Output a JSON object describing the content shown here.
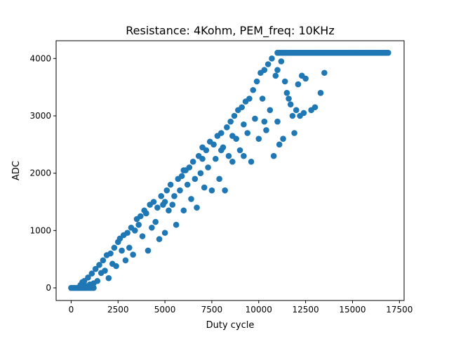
{
  "chart_data": {
    "type": "scatter",
    "title": "Resistance: 4Kohm, PEM_freq: 10KHz",
    "xlabel": "Duty cycle",
    "ylabel": "ADC",
    "xlim": [
      -800,
      17750
    ],
    "ylim": [
      -220,
      4310
    ],
    "grid": false,
    "legend": "none",
    "x_ticks": [
      {
        "value": 0,
        "label": "0"
      },
      {
        "value": 2500,
        "label": "2500"
      },
      {
        "value": 5000,
        "label": "5000"
      },
      {
        "value": 7500,
        "label": "7500"
      },
      {
        "value": 10000,
        "label": "10000"
      },
      {
        "value": 12500,
        "label": "12500"
      },
      {
        "value": 15000,
        "label": "15000"
      },
      {
        "value": 17500,
        "label": "17500"
      }
    ],
    "y_ticks": [
      {
        "value": 0,
        "label": "0"
      },
      {
        "value": 1000,
        "label": "1000"
      },
      {
        "value": 2000,
        "label": "2000"
      },
      {
        "value": 3000,
        "label": "3000"
      },
      {
        "value": 4000,
        "label": "4000"
      }
    ],
    "series": [
      {
        "color": "#1f77b4",
        "marker": "circle",
        "points": [
          [
            0,
            0
          ],
          [
            100,
            0
          ],
          [
            200,
            0
          ],
          [
            300,
            0
          ],
          [
            400,
            0
          ],
          [
            500,
            0
          ],
          [
            600,
            0
          ],
          [
            700,
            0
          ],
          [
            800,
            0
          ],
          [
            900,
            0
          ],
          [
            1000,
            0
          ],
          [
            1100,
            0
          ],
          [
            1200,
            0
          ],
          [
            500,
            50
          ],
          [
            600,
            100
          ],
          [
            700,
            120
          ],
          [
            800,
            30
          ],
          [
            900,
            180
          ],
          [
            1000,
            60
          ],
          [
            1100,
            250
          ],
          [
            1200,
            80
          ],
          [
            1300,
            330
          ],
          [
            1400,
            120
          ],
          [
            1500,
            400
          ],
          [
            1600,
            260
          ],
          [
            1700,
            480
          ],
          [
            1800,
            300
          ],
          [
            1900,
            570
          ],
          [
            2000,
            170
          ],
          [
            2100,
            600
          ],
          [
            2200,
            420
          ],
          [
            2300,
            700
          ],
          [
            2400,
            380
          ],
          [
            2500,
            800
          ],
          [
            2600,
            860
          ],
          [
            2700,
            650
          ],
          [
            2800,
            920
          ],
          [
            2900,
            480
          ],
          [
            3000,
            960
          ],
          [
            3100,
            700
          ],
          [
            3200,
            1050
          ],
          [
            3300,
            580
          ],
          [
            3400,
            1000
          ],
          [
            3500,
            1200
          ],
          [
            3600,
            1100
          ],
          [
            3700,
            1250
          ],
          [
            3800,
            900
          ],
          [
            3900,
            1350
          ],
          [
            4000,
            1300
          ],
          [
            4100,
            650
          ],
          [
            4200,
            1450
          ],
          [
            4300,
            1050
          ],
          [
            4400,
            1500
          ],
          [
            4500,
            1150
          ],
          [
            4600,
            1400
          ],
          [
            4700,
            850
          ],
          [
            4800,
            1600
          ],
          [
            4900,
            1450
          ],
          [
            5000,
            960
          ],
          [
            5100,
            1700
          ],
          [
            5200,
            1350
          ],
          [
            5300,
            1800
          ],
          [
            5400,
            1450
          ],
          [
            5500,
            1600
          ],
          [
            5600,
            1100
          ],
          [
            5700,
            1900
          ],
          [
            5800,
            1700
          ],
          [
            5900,
            1950
          ],
          [
            6000,
            1350
          ],
          [
            6100,
            2050
          ],
          [
            6200,
            1800
          ],
          [
            6300,
            2100
          ],
          [
            6400,
            1550
          ],
          [
            6500,
            2200
          ],
          [
            6600,
            1900
          ],
          [
            6700,
            1400
          ],
          [
            6800,
            2300
          ],
          [
            6900,
            2000
          ],
          [
            7000,
            2450
          ],
          [
            7100,
            1750
          ],
          [
            7200,
            2400
          ],
          [
            7300,
            2100
          ],
          [
            7400,
            2550
          ],
          [
            7500,
            1700
          ],
          [
            7600,
            2500
          ],
          [
            7700,
            2250
          ],
          [
            7800,
            2650
          ],
          [
            7900,
            1900
          ],
          [
            8000,
            2700
          ],
          [
            8100,
            2450
          ],
          [
            8200,
            1700
          ],
          [
            8300,
            2800
          ],
          [
            8400,
            2300
          ],
          [
            8500,
            2900
          ],
          [
            8600,
            2200
          ],
          [
            8700,
            3000
          ],
          [
            8800,
            2600
          ],
          [
            8900,
            3100
          ],
          [
            9000,
            2400
          ],
          [
            9100,
            3150
          ],
          [
            9200,
            2850
          ],
          [
            9300,
            3250
          ],
          [
            9400,
            2700
          ],
          [
            9500,
            3300
          ],
          [
            9600,
            2200
          ],
          [
            9700,
            3450
          ],
          [
            9800,
            2950
          ],
          [
            9900,
            3600
          ],
          [
            10000,
            2600
          ],
          [
            10100,
            3750
          ],
          [
            10200,
            3300
          ],
          [
            10300,
            3800
          ],
          [
            10400,
            2750
          ],
          [
            10500,
            3900
          ],
          [
            10600,
            3100
          ],
          [
            10700,
            4000
          ],
          [
            10800,
            2300
          ],
          [
            10900,
            3700
          ],
          [
            11000,
            2900
          ],
          [
            11100,
            2500
          ],
          [
            11200,
            3950
          ],
          [
            11300,
            2600
          ],
          [
            11400,
            3600
          ],
          [
            11500,
            3400
          ],
          [
            11600,
            3300
          ],
          [
            11700,
            3200
          ],
          [
            11800,
            3000
          ],
          [
            11900,
            2700
          ],
          [
            12000,
            3100
          ],
          [
            12100,
            3550
          ],
          [
            12200,
            3000
          ],
          [
            12300,
            3700
          ],
          [
            12400,
            3050
          ],
          [
            12500,
            3650
          ],
          [
            12800,
            3100
          ],
          [
            13000,
            3150
          ],
          [
            13300,
            3400
          ],
          [
            13500,
            3750
          ],
          [
            8000,
            2400
          ],
          [
            8600,
            2650
          ],
          [
            9200,
            2300
          ],
          [
            10300,
            2900
          ],
          [
            11000,
            3800
          ],
          [
            7000,
            2250
          ],
          [
            6000,
            2050
          ],
          [
            5000,
            1500
          ],
          [
            4000,
            1300
          ]
        ],
        "plateau": {
          "value": 4100,
          "x_start": 11000,
          "x_end": 16900,
          "x_step": 100
        }
      }
    ]
  }
}
